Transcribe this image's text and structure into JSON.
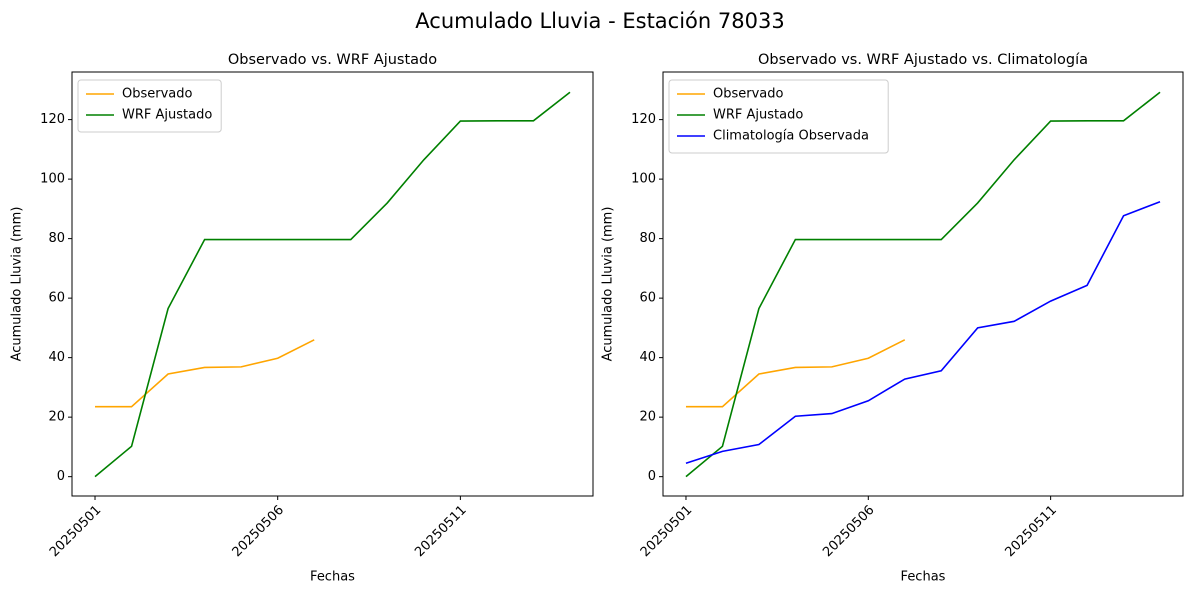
{
  "title": "Acumulado Lluvia - Estación 78033",
  "chart_data": [
    {
      "type": "line",
      "title": "Observado vs. WRF Ajustado",
      "x_label": "Fechas",
      "y_label": "Acumulado Lluvia (mm)",
      "categories": [
        "20250501",
        null,
        null,
        null,
        null,
        "20250506",
        null,
        null,
        null,
        null,
        "20250511",
        null,
        null,
        null
      ],
      "series": [
        {
          "name": "Observado",
          "color": "orange",
          "values": [
            23.5,
            23.5,
            34.5,
            36.7,
            36.9,
            39.8,
            46.0,
            null,
            null,
            null,
            null,
            null,
            null,
            null
          ]
        },
        {
          "name": "WRF Ajustado",
          "color": "green",
          "values": [
            0,
            10.2,
            56.5,
            79.7,
            79.7,
            79.7,
            79.7,
            79.7,
            92.0,
            106.5,
            119.5,
            119.6,
            119.6,
            129.2
          ]
        }
      ],
      "ylim": [
        -6.5,
        136
      ],
      "yticks": [
        0,
        20,
        40,
        60,
        80,
        100,
        120
      ],
      "legend": "upper left"
    },
    {
      "type": "line",
      "title": "Observado vs. WRF Ajustado vs. Climatología",
      "x_label": "Fechas",
      "y_label": "Acumulado Lluvia (mm)",
      "categories": [
        "20250501",
        null,
        null,
        null,
        null,
        "20250506",
        null,
        null,
        null,
        null,
        "20250511",
        null,
        null,
        null
      ],
      "series": [
        {
          "name": "Observado",
          "color": "orange",
          "values": [
            23.5,
            23.5,
            34.5,
            36.7,
            36.9,
            39.8,
            46.0,
            null,
            null,
            null,
            null,
            null,
            null,
            null
          ]
        },
        {
          "name": "WRF Ajustado",
          "color": "green",
          "values": [
            0,
            10.2,
            56.5,
            79.7,
            79.7,
            79.7,
            79.7,
            79.7,
            92.0,
            106.5,
            119.5,
            119.6,
            119.6,
            129.2
          ]
        },
        {
          "name": "Climatología Observada",
          "color": "blue",
          "values": [
            4.5,
            8.5,
            10.8,
            20.3,
            21.2,
            25.5,
            32.8,
            35.6,
            50.0,
            52.2,
            59.0,
            64.3,
            87.7,
            92.4
          ]
        }
      ],
      "ylim": [
        -6.5,
        136
      ],
      "yticks": [
        0,
        20,
        40,
        60,
        80,
        100,
        120
      ],
      "legend": "upper left"
    }
  ]
}
